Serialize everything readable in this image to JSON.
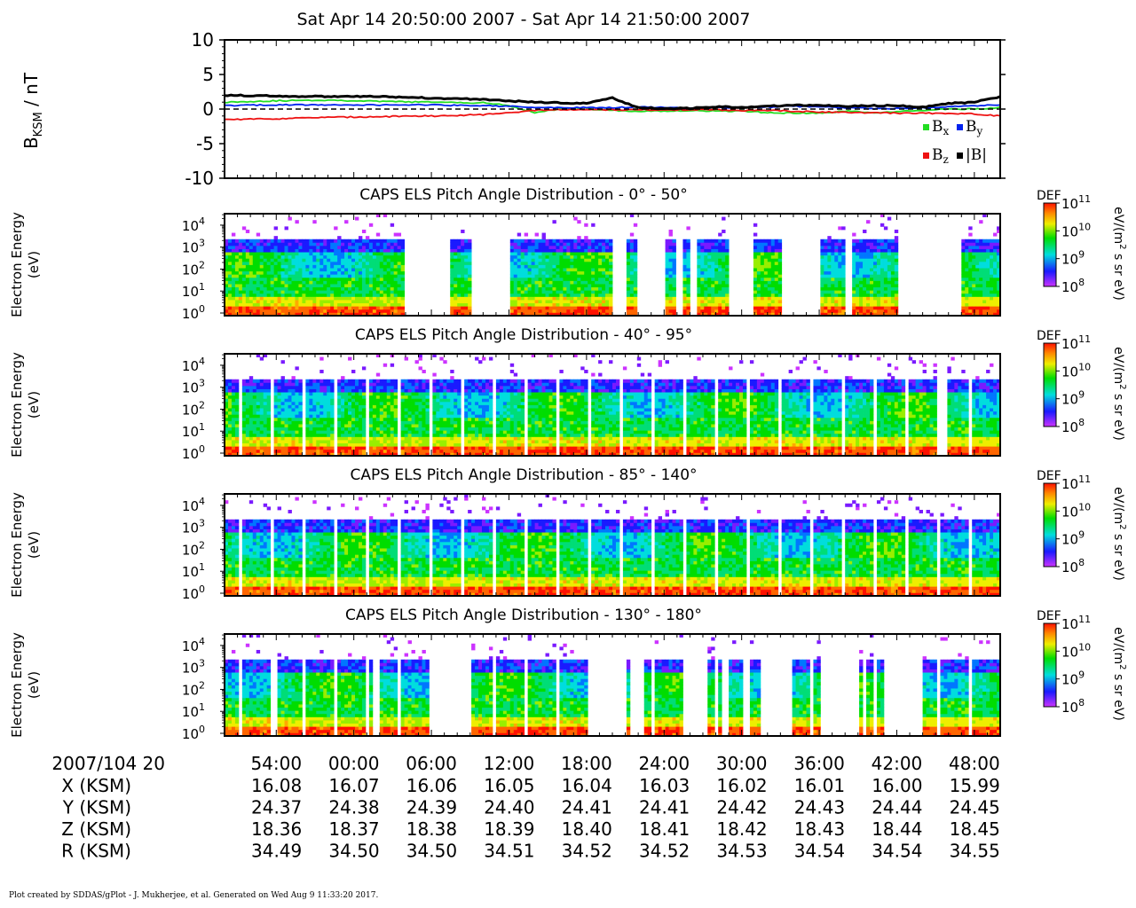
{
  "title": "Sat Apr 14 20:50:00 2007 - Sat Apr 14 21:50:00 2007",
  "footer": "Plot created by SDDAS/gPlot - J. Mukherjee, et al.  Generated on Wed Aug 9 11:33:20 2017.",
  "colors": {
    "bx": "#22dd22",
    "by": "#0022ee",
    "bz": "#ee1111",
    "b_total": "#000000"
  },
  "chart_data": [
    {
      "type": "line",
      "ylabel_main": "B",
      "ylabel_sub": "KSM",
      "ylabel_unit": " / nT",
      "ylim": [
        -10,
        10
      ],
      "yticks": [
        10,
        5,
        0,
        -5,
        -10
      ],
      "x_minutes": [
        0,
        4,
        8,
        12,
        16,
        20,
        22,
        24,
        26,
        28,
        30,
        32,
        34,
        36,
        38,
        40,
        42,
        44,
        46,
        48,
        50,
        52,
        54,
        56,
        58,
        60
      ],
      "legend": [
        {
          "label": "B",
          "sub": "x",
          "color_key": "bx"
        },
        {
          "label": "B",
          "sub": "y",
          "color_key": "by"
        },
        {
          "label": "B",
          "sub": "z",
          "color_key": "bz"
        },
        {
          "label": "|B|",
          "sub": "",
          "color_key": "b_total"
        }
      ],
      "series": [
        {
          "name": "Bx",
          "color_key": "bx",
          "values": [
            1.0,
            1.2,
            1.3,
            1.1,
            1.0,
            0.9,
            0.5,
            -0.5,
            0.0,
            0.0,
            -0.2,
            -0.3,
            -0.3,
            -0.2,
            -0.3,
            -0.3,
            -0.5,
            -0.6,
            -0.6,
            -0.3,
            -0.5,
            -0.4,
            -0.2,
            0.0,
            0.0,
            0.2
          ]
        },
        {
          "name": "By",
          "color_key": "by",
          "values": [
            0.5,
            0.6,
            0.6,
            0.6,
            0.6,
            0.5,
            0.4,
            0.2,
            0.2,
            0.2,
            0.2,
            0.3,
            0.2,
            0.1,
            0.2,
            0.2,
            0.3,
            0.4,
            0.3,
            0.2,
            0.1,
            0.1,
            0.2,
            0.3,
            0.5,
            0.6
          ]
        },
        {
          "name": "Bz",
          "color_key": "bz",
          "values": [
            -1.5,
            -1.4,
            -1.2,
            -1.1,
            -1.0,
            -0.8,
            -0.5,
            -0.2,
            -0.1,
            -0.1,
            -0.1,
            -0.1,
            -0.1,
            -0.1,
            -0.1,
            -0.2,
            -0.2,
            -0.3,
            -0.4,
            -0.5,
            -0.5,
            -0.6,
            -0.6,
            -0.6,
            -0.7,
            -1.0
          ]
        },
        {
          "name": "|B|",
          "color_key": "b_total",
          "values": [
            2.0,
            1.9,
            1.8,
            1.8,
            1.6,
            1.4,
            1.2,
            1.0,
            0.9,
            0.8,
            1.6,
            0.2,
            0.1,
            0.1,
            0.3,
            0.3,
            0.4,
            0.6,
            0.5,
            0.4,
            0.5,
            0.5,
            0.3,
            0.8,
            1.0,
            1.8
          ]
        },
        {
          "name": "zero",
          "color_key": "b_total",
          "dashed": true,
          "values": [
            0,
            0
          ]
        }
      ]
    },
    {
      "type": "heatmap",
      "title": "CAPS ELS Pitch Angle Distribution - 0° - 50°",
      "ylabel": "Electron Energy",
      "ylabel_unit": "(eV)",
      "yticks": [
        "10",
        "10",
        "10",
        "10",
        "10"
      ],
      "ytick_exp": [
        "4",
        "3",
        "2",
        "1",
        "0"
      ],
      "colorbar": {
        "label": "DEF",
        "unit_a": "eV/(m",
        "unit_sup": "2",
        "unit_b": " s sr eV)",
        "ticks": [
          "10",
          "10",
          "10",
          "10"
        ],
        "tick_exp": [
          "11",
          "10",
          "9",
          "8"
        ]
      },
      "data_intervals_min": [
        [
          0,
          14
        ],
        [
          17.5,
          19
        ],
        [
          22,
          27.5
        ],
        [
          27.5,
          30
        ],
        [
          31,
          32
        ],
        [
          34,
          35
        ],
        [
          35.5,
          36
        ],
        [
          36.5,
          39
        ],
        [
          41,
          43
        ],
        [
          46,
          48
        ],
        [
          48.5,
          52
        ],
        [
          57,
          60
        ]
      ]
    },
    {
      "type": "heatmap",
      "title": "CAPS ELS Pitch Angle Distribution - 40° - 95°",
      "ylabel": "Electron Energy",
      "ylabel_unit": "(eV)",
      "yticks": [
        "10",
        "10",
        "10",
        "10",
        "10"
      ],
      "ytick_exp": [
        "4",
        "3",
        "2",
        "1",
        "0"
      ],
      "colorbar": {
        "label": "DEF",
        "unit_a": "eV/(m",
        "unit_sup": "2",
        "unit_b": " s sr eV)",
        "ticks": [
          "10",
          "10",
          "10",
          "10"
        ],
        "tick_exp": [
          "11",
          "10",
          "9",
          "8"
        ]
      },
      "data_intervals_min": [
        [
          0,
          55
        ],
        [
          56,
          60
        ]
      ]
    },
    {
      "type": "heatmap",
      "title": "CAPS ELS Pitch Angle Distribution - 85° - 140°",
      "ylabel": "Electron Energy",
      "ylabel_unit": "(eV)",
      "yticks": [
        "10",
        "10",
        "10",
        "10",
        "10"
      ],
      "ytick_exp": [
        "4",
        "3",
        "2",
        "1",
        "0"
      ],
      "colorbar": {
        "label": "DEF",
        "unit_a": "eV/(m",
        "unit_sup": "2",
        "unit_b": " s sr eV)",
        "ticks": [
          "10",
          "10",
          "10",
          "10"
        ],
        "tick_exp": [
          "11",
          "10",
          "9",
          "8"
        ]
      },
      "data_intervals_min": [
        [
          0,
          60
        ]
      ]
    },
    {
      "type": "heatmap",
      "title": "CAPS ELS Pitch Angle Distribution - 130° - 180°",
      "ylabel": "Electron Energy",
      "ylabel_unit": "(eV)",
      "yticks": [
        "10",
        "10",
        "10",
        "10",
        "10"
      ],
      "ytick_exp": [
        "4",
        "3",
        "2",
        "1",
        "0"
      ],
      "colorbar": {
        "label": "DEF",
        "unit_a": "eV/(m",
        "unit_sup": "2",
        "unit_b": " s sr eV)",
        "ticks": [
          "10",
          "10",
          "10",
          "10"
        ],
        "tick_exp": [
          "11",
          "10",
          "9",
          "8"
        ]
      },
      "data_intervals_min": [
        [
          0,
          3.5
        ],
        [
          4,
          11.5
        ],
        [
          12,
          16
        ],
        [
          19,
          28
        ],
        [
          31,
          31.5
        ],
        [
          32.5,
          35.5
        ],
        [
          37.5,
          38.5
        ],
        [
          39,
          40
        ],
        [
          40.5,
          41.5
        ],
        [
          44,
          46
        ],
        [
          49,
          49.3
        ],
        [
          49.7,
          51
        ],
        [
          54,
          60
        ]
      ]
    }
  ],
  "time_axis": {
    "row_label": "2007/104 20",
    "tick_minutes": [
      4,
      10,
      16,
      22,
      28,
      34,
      40,
      46,
      52,
      58
    ],
    "tick_labels": [
      "54:00",
      "00:00",
      "06:00",
      "12:00",
      "18:00",
      "24:00",
      "30:00",
      "36:00",
      "42:00",
      "48:00"
    ]
  },
  "ephemeris": [
    {
      "label": "X (KSM)",
      "values": [
        "16.08",
        "16.07",
        "16.06",
        "16.05",
        "16.04",
        "16.03",
        "16.02",
        "16.01",
        "16.00",
        "15.99"
      ]
    },
    {
      "label": "Y (KSM)",
      "values": [
        "24.37",
        "24.38",
        "24.39",
        "24.40",
        "24.41",
        "24.41",
        "24.42",
        "24.43",
        "24.44",
        "24.45"
      ]
    },
    {
      "label": "Z (KSM)",
      "values": [
        "18.36",
        "18.37",
        "18.38",
        "18.39",
        "18.40",
        "18.41",
        "18.42",
        "18.43",
        "18.44",
        "18.45"
      ]
    },
    {
      "label": "R (KSM)",
      "values": [
        "34.49",
        "34.50",
        "34.50",
        "34.51",
        "34.52",
        "34.52",
        "34.53",
        "34.54",
        "34.54",
        "34.55"
      ]
    }
  ]
}
